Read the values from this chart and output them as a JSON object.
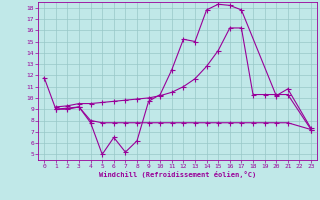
{
  "xlabel": "Windchill (Refroidissement éolien,°C)",
  "background_color": "#c0e8e8",
  "grid_color": "#98c8c8",
  "line_color": "#990099",
  "xlim_min": -0.5,
  "xlim_max": 23.5,
  "ylim_min": 4.5,
  "ylim_max": 18.5,
  "x_ticks": [
    0,
    1,
    2,
    3,
    4,
    5,
    6,
    7,
    8,
    9,
    10,
    11,
    12,
    13,
    14,
    15,
    16,
    17,
    18,
    19,
    20,
    21,
    22,
    23
  ],
  "y_ticks": [
    5,
    6,
    7,
    8,
    9,
    10,
    11,
    12,
    13,
    14,
    15,
    16,
    17,
    18
  ],
  "line1_x": [
    0,
    1,
    2,
    3,
    4,
    5,
    6,
    7,
    8,
    9,
    10,
    11,
    12,
    13,
    14,
    15,
    16,
    17,
    20,
    21,
    23
  ],
  "line1_y": [
    11.8,
    9.0,
    9.0,
    9.2,
    7.8,
    5.0,
    6.5,
    5.2,
    6.2,
    9.7,
    10.3,
    12.5,
    15.2,
    15.0,
    17.8,
    18.3,
    18.2,
    17.8,
    10.2,
    10.8,
    7.3
  ],
  "line2_x": [
    1,
    2,
    3,
    4,
    5,
    6,
    7,
    8,
    9,
    10,
    11,
    12,
    13,
    14,
    15,
    16,
    17,
    18,
    19,
    20,
    21,
    23
  ],
  "line2_y": [
    9.2,
    9.3,
    9.5,
    9.5,
    9.6,
    9.7,
    9.8,
    9.9,
    10.0,
    10.2,
    10.5,
    11.0,
    11.7,
    12.8,
    14.2,
    16.2,
    16.2,
    10.3,
    10.3,
    10.3,
    10.3,
    7.2
  ],
  "line3_x": [
    1,
    2,
    3,
    4,
    5,
    6,
    7,
    8,
    9,
    10,
    11,
    12,
    13,
    14,
    15,
    16,
    17,
    18,
    19,
    20,
    21,
    23
  ],
  "line3_y": [
    9.0,
    9.1,
    9.2,
    8.0,
    7.8,
    7.8,
    7.8,
    7.8,
    7.8,
    7.8,
    7.8,
    7.8,
    7.8,
    7.8,
    7.8,
    7.8,
    7.8,
    7.8,
    7.8,
    7.8,
    7.8,
    7.2
  ]
}
